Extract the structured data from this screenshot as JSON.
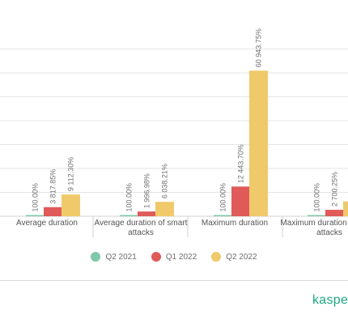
{
  "chart_data": {
    "type": "bar",
    "title": "",
    "xlabel": "",
    "ylabel": "",
    "ylim": [
      0,
      70000
    ],
    "grid": true,
    "legend_position": "bottom",
    "categories": [
      "Average duration",
      "Average duration of smart attacks",
      "Maximum duration",
      "Maximum duration of smart attacks"
    ],
    "series": [
      {
        "name": "Q2 2021",
        "color": "#7fc8a9",
        "values": [
          100,
          100,
          100,
          100
        ],
        "labels": [
          "100.00%",
          "100.00%",
          "100.00%",
          "100.00%"
        ]
      },
      {
        "name": "Q1 2022",
        "color": "#e05a5a",
        "values": [
          3817.85,
          1996.98,
          12443.7,
          2700.25
        ],
        "labels": [
          "3 817.85%",
          "1 996.98%",
          "12 443.70%",
          "2 700.25%"
        ]
      },
      {
        "name": "Q2 2022",
        "color": "#f0c96a",
        "values": [
          9112.3,
          6038.21,
          60943.75,
          6200
        ],
        "labels": [
          "9 112.30%",
          "6 038.21%",
          "60 943.75%",
          ""
        ]
      }
    ]
  },
  "brand": {
    "text": "kasper"
  }
}
